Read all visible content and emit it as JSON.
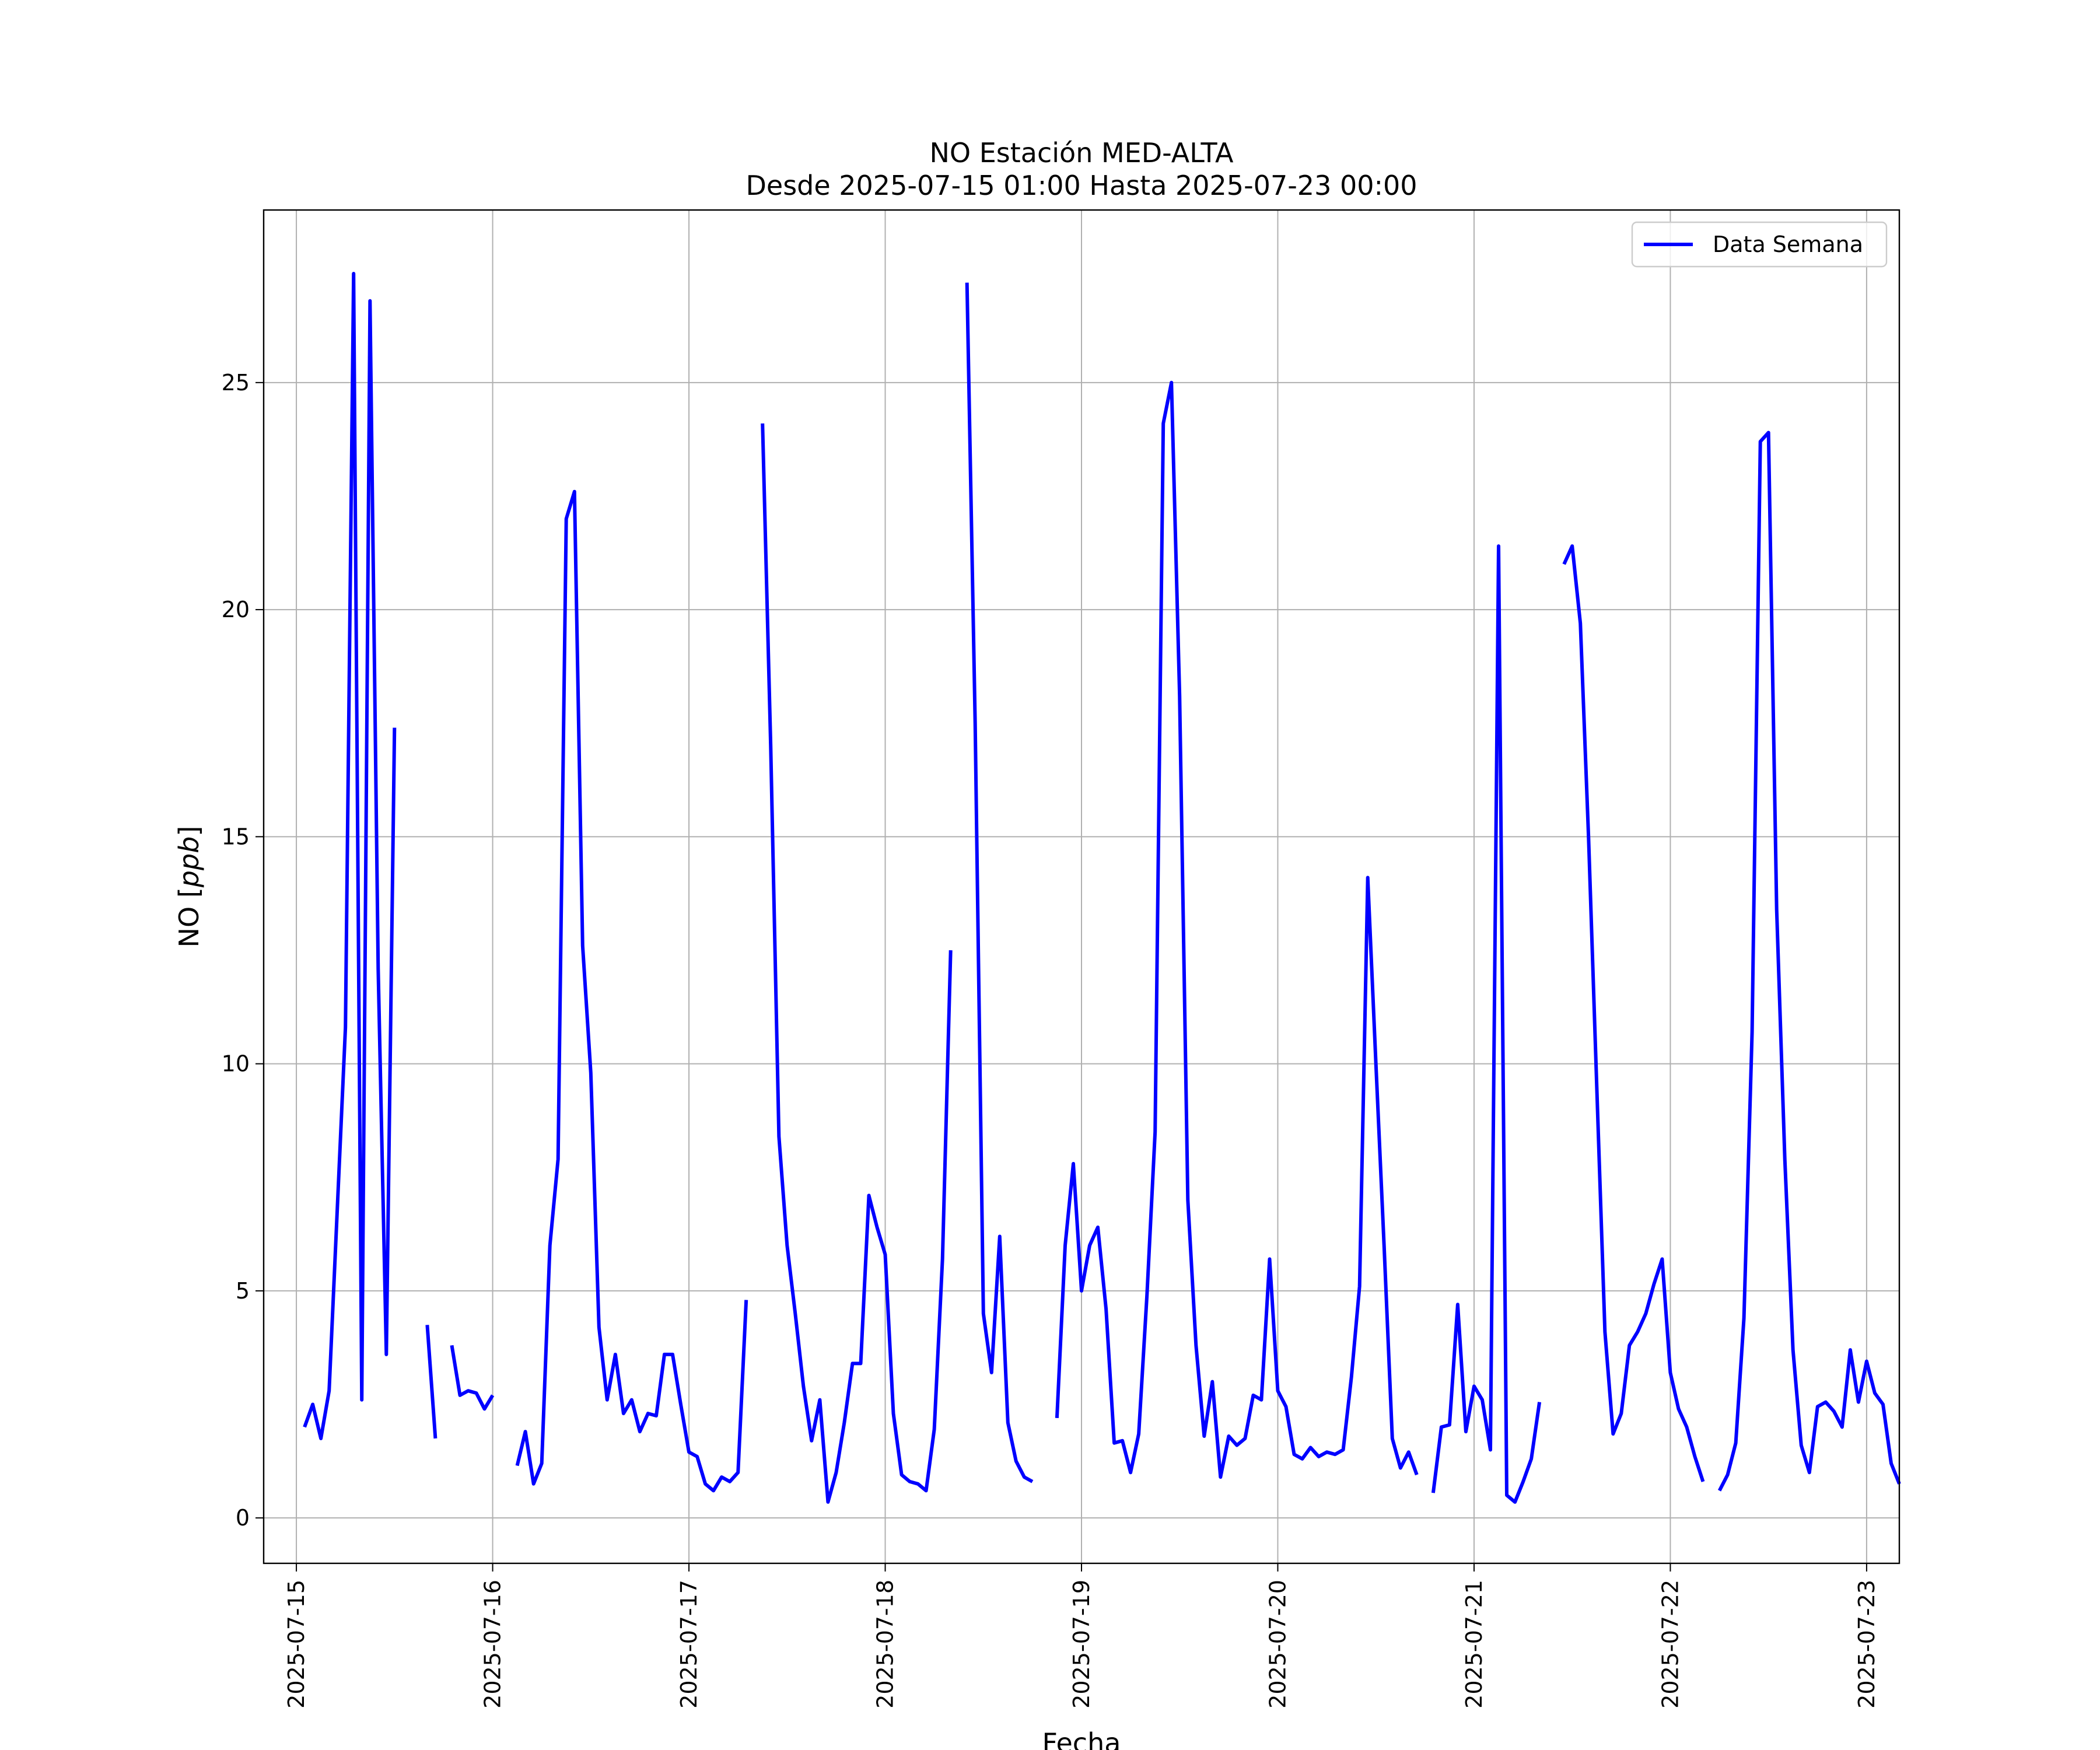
{
  "chart_data": {
    "type": "line",
    "title": "NO Estación MED-ALTA",
    "subtitle": "Desde 2025-07-15 01:00 Hasta 2025-07-23 00:00",
    "xlabel": "Fecha",
    "ylabel": "NO [ppb]",
    "ylabel_parts": {
      "prefix": "NO [",
      "italic": "ppb",
      "suffix": "]"
    },
    "x_start": "2025-07-15 01:00",
    "x_end": "2025-07-23 00:00",
    "xlim": [
      "2025-07-14 20:00",
      "2025-07-23 04:00"
    ],
    "ylim": [
      -1.0,
      28.8
    ],
    "x_ticks": [
      "2025-07-15",
      "2025-07-16",
      "2025-07-17",
      "2025-07-18",
      "2025-07-19",
      "2025-07-20",
      "2025-07-21",
      "2025-07-22",
      "2025-07-23"
    ],
    "y_ticks": [
      0,
      5,
      10,
      15,
      20,
      25
    ],
    "grid": true,
    "legend_position": "top-right",
    "series": [
      {
        "name": "Data Semana",
        "color": "#0000ff",
        "interval_hours": 1,
        "values": [
          2.0,
          2.5,
          1.75,
          2.8,
          6.8,
          10.8,
          27.4,
          2.6,
          26.8,
          12.1,
          3.6,
          17.4,
          null,
          null,
          null,
          4.25,
          1.75,
          null,
          3.8,
          2.7,
          2.8,
          2.75,
          2.4,
          2.7,
          null,
          null,
          1.15,
          1.9,
          0.75,
          1.2,
          6.0,
          7.9,
          22.0,
          22.6,
          12.6,
          9.8,
          4.2,
          2.6,
          3.6,
          2.3,
          2.6,
          1.9,
          2.3,
          2.25,
          3.6,
          3.6,
          2.5,
          1.45,
          1.35,
          0.75,
          0.6,
          0.9,
          0.8,
          1.0,
          4.8,
          null,
          24.1,
          17.0,
          8.4,
          6.0,
          4.5,
          2.9,
          1.7,
          2.6,
          0.35,
          1.0,
          2.1,
          3.4,
          3.4,
          7.1,
          6.4,
          5.8,
          2.3,
          0.95,
          0.8,
          0.75,
          0.6,
          1.95,
          5.7,
          12.5,
          null,
          27.2,
          17.5,
          4.5,
          3.2,
          6.2,
          2.1,
          1.25,
          0.9,
          0.8,
          null,
          null,
          2.2,
          6.0,
          7.8,
          5.0,
          6.0,
          6.4,
          4.6,
          1.65,
          1.7,
          1.0,
          1.85,
          4.9,
          8.5,
          24.1,
          25.0,
          18.1,
          7.0,
          3.8,
          1.8,
          3.0,
          0.9,
          1.8,
          1.6,
          1.75,
          2.7,
          2.6,
          5.7,
          2.8,
          2.45,
          1.4,
          1.3,
          1.55,
          1.35,
          1.45,
          1.4,
          1.5,
          3.1,
          5.1,
          14.1,
          10.0,
          6.0,
          1.75,
          1.1,
          1.45,
          0.95,
          null,
          0.55,
          2.0,
          2.05,
          4.7,
          1.9,
          2.9,
          2.6,
          1.5,
          21.4,
          0.5,
          0.35,
          0.8,
          1.3,
          2.55,
          null,
          null,
          21.0,
          21.4,
          19.7,
          15.0,
          9.5,
          4.1,
          1.85,
          2.3,
          3.8,
          4.1,
          4.5,
          5.15,
          5.7,
          3.2,
          2.4,
          2.0,
          1.35,
          0.8,
          null,
          0.6,
          0.95,
          1.65,
          4.4,
          10.7,
          23.7,
          23.9,
          13.4,
          7.9,
          3.7,
          1.6,
          1.0,
          2.45,
          2.55,
          2.35,
          2.0,
          3.7,
          2.55,
          3.45,
          2.75,
          2.5,
          1.2,
          0.75
        ]
      }
    ]
  }
}
